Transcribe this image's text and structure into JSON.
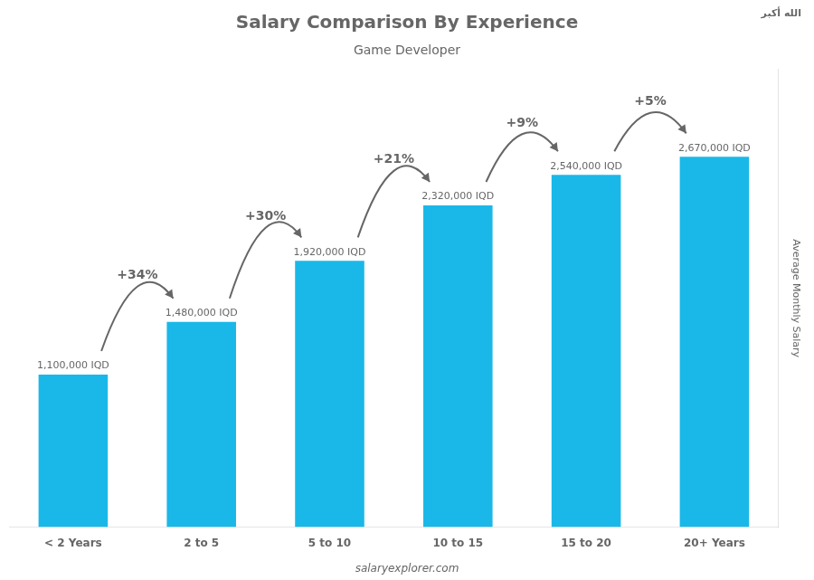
{
  "chart_data": {
    "type": "bar",
    "title": "Salary Comparison By Experience",
    "subtitle": "Game Developer",
    "ylabel": "Average Monthly Salary",
    "categories": [
      "< 2 Years",
      "2 to 5",
      "5 to 10",
      "10 to 15",
      "15 to 20",
      "20+ Years"
    ],
    "values": [
      1100000,
      1480000,
      1920000,
      2320000,
      2540000,
      2670000
    ],
    "value_labels": [
      "1,100,000 IQD",
      "1,480,000 IQD",
      "1,920,000 IQD",
      "2,320,000 IQD",
      "2,540,000 IQD",
      "2,670,000 IQD"
    ],
    "data_labels": true,
    "color": "#1AB8E8",
    "ylim": [
      0,
      3300000
    ],
    "tick_labels": "x",
    "grid": false,
    "annotations": [
      {
        "text": "+34%",
        "from": "< 2 Years",
        "to": "2 to 5"
      },
      {
        "text": "+30%",
        "from": "2 to 5",
        "to": "5 to 10"
      },
      {
        "text": "+21%",
        "from": "5 to 10",
        "to": "10 to 15"
      },
      {
        "text": "+9%",
        "from": "10 to 15",
        "to": "15 to 20"
      },
      {
        "text": "+5%",
        "from": "15 to 20",
        "to": "20+ Years"
      },
      {
        "text": "salaryexplorer.com"
      },
      {
        "text": "الله أكبر"
      }
    ]
  }
}
